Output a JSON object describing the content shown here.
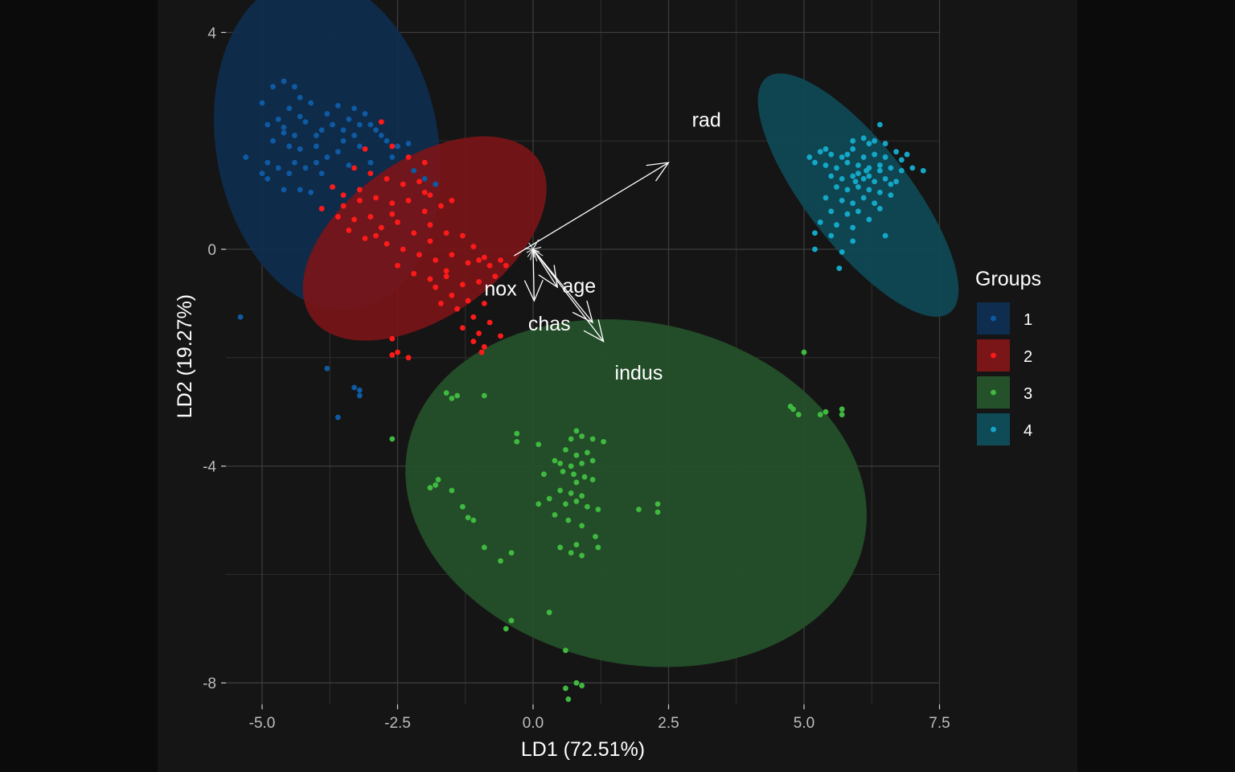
{
  "chart_data": {
    "type": "scatter",
    "xlabel": "LD1 (72.51%)",
    "ylabel": "LD2 (19.27%)",
    "xlim": [
      -5.6,
      7.6
    ],
    "ylim": [
      -8.3,
      4.3
    ],
    "x_ticks": [
      {
        "value": -5.0,
        "label": "-5.0"
      },
      {
        "value": -2.5,
        "label": "-2.5"
      },
      {
        "value": 0.0,
        "label": "0.0"
      },
      {
        "value": 2.5,
        "label": "2.5"
      },
      {
        "value": 5.0,
        "label": "5.0"
      },
      {
        "value": 7.5,
        "label": "7.5"
      }
    ],
    "y_ticks": [
      {
        "value": 4,
        "label": "4"
      },
      {
        "value": 0,
        "label": "0"
      },
      {
        "value": -4,
        "label": "-4"
      },
      {
        "value": -8,
        "label": "-8"
      }
    ],
    "grid": true,
    "legend": {
      "title": "Groups",
      "placement": "right",
      "entries": [
        {
          "name": "1",
          "color": "#0e5aa3"
        },
        {
          "name": "2",
          "color": "#ff1a1a"
        },
        {
          "name": "3",
          "color": "#3fb93f"
        },
        {
          "name": "4",
          "color": "#14a8c8"
        }
      ]
    },
    "ellipses": [
      {
        "group": "1",
        "cx": -3.8,
        "cy": 1.95,
        "rx": 2.05,
        "ry": 3.1,
        "angle_deg": -10,
        "fill": "#0f2e4f"
      },
      {
        "group": "2",
        "cx": -2.0,
        "cy": 0.2,
        "rx": 2.55,
        "ry": 1.45,
        "angle_deg": -35,
        "fill": "#7a1518"
      },
      {
        "group": "3",
        "cx": 1.9,
        "cy": -4.5,
        "rx": 4.3,
        "ry": 3.15,
        "angle_deg": 12,
        "fill": "#25512a"
      },
      {
        "group": "4",
        "cx": 6.0,
        "cy": 1.0,
        "rx": 0.95,
        "ry": 2.75,
        "angle_deg": -38,
        "fill": "#0f4a57"
      }
    ],
    "series": [
      {
        "name": "1",
        "color": "#0e5aa3",
        "points": [
          [
            -4.8,
            3.0
          ],
          [
            -4.6,
            3.1
          ],
          [
            -4.4,
            3.0
          ],
          [
            -4.3,
            2.8
          ],
          [
            -5.0,
            2.7
          ],
          [
            -4.5,
            2.6
          ],
          [
            -4.1,
            2.7
          ],
          [
            -3.8,
            2.5
          ],
          [
            -3.6,
            2.65
          ],
          [
            -4.9,
            2.3
          ],
          [
            -4.7,
            2.4
          ],
          [
            -4.6,
            2.25
          ],
          [
            -4.4,
            2.1
          ],
          [
            -4.2,
            2.35
          ],
          [
            -3.9,
            2.2
          ],
          [
            -3.7,
            2.3
          ],
          [
            -3.4,
            2.4
          ],
          [
            -3.1,
            2.5
          ],
          [
            -3.0,
            2.3
          ],
          [
            -2.9,
            2.2
          ],
          [
            -3.3,
            2.1
          ],
          [
            -3.5,
            2.0
          ],
          [
            -4.8,
            2.0
          ],
          [
            -4.5,
            1.9
          ],
          [
            -4.3,
            1.85
          ],
          [
            -4.0,
            1.9
          ],
          [
            -3.8,
            1.7
          ],
          [
            -3.6,
            1.8
          ],
          [
            -3.2,
            1.9
          ],
          [
            -2.7,
            2.0
          ],
          [
            -2.5,
            1.9
          ],
          [
            -2.3,
            1.95
          ],
          [
            -5.3,
            1.7
          ],
          [
            -4.9,
            1.6
          ],
          [
            -4.7,
            1.5
          ],
          [
            -4.5,
            1.4
          ],
          [
            -4.2,
            1.5
          ],
          [
            -3.9,
            1.4
          ],
          [
            -4.6,
            1.1
          ],
          [
            -4.9,
            1.3
          ],
          [
            -5.0,
            1.4
          ],
          [
            -4.3,
            1.1
          ],
          [
            -4.1,
            1.05
          ],
          [
            -3.4,
            1.55
          ],
          [
            -3.0,
            1.6
          ],
          [
            -2.6,
            1.7
          ],
          [
            -2.2,
            1.45
          ],
          [
            -2.0,
            1.3
          ],
          [
            -1.8,
            1.2
          ],
          [
            -3.7,
            1.15
          ],
          [
            -4.4,
            1.6
          ],
          [
            -4.0,
            1.6
          ],
          [
            -3.5,
            2.2
          ],
          [
            -3.2,
            2.3
          ],
          [
            -2.8,
            2.1
          ],
          [
            -4.6,
            2.15
          ],
          [
            -4.3,
            2.45
          ],
          [
            -4.0,
            2.1
          ],
          [
            -3.3,
            2.6
          ],
          [
            -5.4,
            -1.25
          ],
          [
            -3.8,
            -2.2
          ],
          [
            -3.6,
            -3.1
          ],
          [
            -3.3,
            -2.55
          ],
          [
            -3.2,
            -2.6
          ],
          [
            -3.2,
            -2.7
          ]
        ]
      },
      {
        "name": "2",
        "color": "#ff1a1a",
        "points": [
          [
            -2.8,
            2.35
          ],
          [
            -3.1,
            1.85
          ],
          [
            -2.6,
            1.9
          ],
          [
            -2.3,
            1.7
          ],
          [
            -2.0,
            1.6
          ],
          [
            -3.3,
            1.5
          ],
          [
            -3.0,
            1.4
          ],
          [
            -2.7,
            1.3
          ],
          [
            -2.4,
            1.2
          ],
          [
            -2.1,
            1.25
          ],
          [
            -1.9,
            1.0
          ],
          [
            -3.7,
            1.15
          ],
          [
            -3.5,
            1.0
          ],
          [
            -3.2,
            0.9
          ],
          [
            -2.9,
            0.95
          ],
          [
            -2.6,
            0.85
          ],
          [
            -2.3,
            0.9
          ],
          [
            -2.0,
            0.7
          ],
          [
            -1.7,
            0.8
          ],
          [
            -1.5,
            0.9
          ],
          [
            -3.9,
            0.75
          ],
          [
            -3.6,
            0.6
          ],
          [
            -3.3,
            0.55
          ],
          [
            -3.0,
            0.6
          ],
          [
            -2.8,
            0.4
          ],
          [
            -2.5,
            0.5
          ],
          [
            -2.2,
            0.3
          ],
          [
            -1.9,
            0.45
          ],
          [
            -1.6,
            0.3
          ],
          [
            -1.3,
            0.25
          ],
          [
            -3.4,
            0.35
          ],
          [
            -3.1,
            0.2
          ],
          [
            -2.7,
            0.1
          ],
          [
            -2.4,
            0.0
          ],
          [
            -2.1,
            -0.1
          ],
          [
            -1.8,
            -0.2
          ],
          [
            -1.5,
            -0.1
          ],
          [
            -1.2,
            -0.25
          ],
          [
            -1.0,
            -0.2
          ],
          [
            -0.8,
            -0.3
          ],
          [
            -2.5,
            -0.3
          ],
          [
            -2.2,
            -0.45
          ],
          [
            -1.9,
            -0.55
          ],
          [
            -1.6,
            -0.5
          ],
          [
            -1.3,
            -0.65
          ],
          [
            -1.0,
            -0.6
          ],
          [
            -0.7,
            -0.5
          ],
          [
            -1.8,
            -0.7
          ],
          [
            -1.5,
            -0.85
          ],
          [
            -1.2,
            -0.95
          ],
          [
            -0.9,
            -1.0
          ],
          [
            -1.7,
            -1.0
          ],
          [
            -1.4,
            -1.1
          ],
          [
            -1.1,
            -1.25
          ],
          [
            -0.8,
            -1.35
          ],
          [
            -1.3,
            -1.45
          ],
          [
            -1.0,
            -1.55
          ],
          [
            -0.6,
            -1.6
          ],
          [
            -0.9,
            -1.8
          ],
          [
            -1.1,
            -1.7
          ],
          [
            -2.6,
            -1.65
          ],
          [
            -2.5,
            -1.9
          ],
          [
            -2.6,
            -1.95
          ],
          [
            -2.3,
            -2.0
          ],
          [
            -1.6,
            -0.4
          ],
          [
            -2.0,
            1.05
          ],
          [
            -2.6,
            0.65
          ],
          [
            -2.9,
            0.25
          ],
          [
            -3.2,
            1.1
          ],
          [
            -3.5,
            0.8
          ],
          [
            -1.9,
            0.15
          ],
          [
            -1.1,
            0.05
          ],
          [
            -0.9,
            -0.15
          ],
          [
            -0.6,
            -0.2
          ],
          [
            -0.5,
            -0.3
          ],
          [
            -0.95,
            -1.9
          ]
        ]
      },
      {
        "name": "3",
        "color": "#3fb93f",
        "points": [
          [
            -1.6,
            -2.65
          ],
          [
            -1.5,
            -2.75
          ],
          [
            -1.4,
            -2.7
          ],
          [
            -0.9,
            -2.7
          ],
          [
            -2.6,
            -3.5
          ],
          [
            -0.3,
            -3.4
          ],
          [
            -0.3,
            -3.55
          ],
          [
            0.1,
            -3.6
          ],
          [
            0.8,
            -3.35
          ],
          [
            0.7,
            -3.5
          ],
          [
            0.9,
            -3.45
          ],
          [
            1.1,
            -3.5
          ],
          [
            1.3,
            -3.55
          ],
          [
            0.6,
            -3.7
          ],
          [
            0.8,
            -3.8
          ],
          [
            1.0,
            -3.75
          ],
          [
            0.4,
            -3.9
          ],
          [
            0.5,
            -3.95
          ],
          [
            0.7,
            -4.0
          ],
          [
            0.9,
            -3.95
          ],
          [
            1.1,
            -3.9
          ],
          [
            0.55,
            -4.1
          ],
          [
            0.75,
            -4.15
          ],
          [
            0.95,
            -4.2
          ],
          [
            1.1,
            -4.25
          ],
          [
            0.8,
            -4.3
          ],
          [
            0.5,
            -4.45
          ],
          [
            0.7,
            -4.5
          ],
          [
            0.9,
            -4.55
          ],
          [
            0.3,
            -4.6
          ],
          [
            0.1,
            -4.7
          ],
          [
            0.6,
            -4.7
          ],
          [
            0.8,
            -4.65
          ],
          [
            1.0,
            -4.75
          ],
          [
            1.2,
            -4.8
          ],
          [
            0.4,
            -4.9
          ],
          [
            0.65,
            -5.0
          ],
          [
            0.9,
            -5.1
          ],
          [
            -1.8,
            -4.35
          ],
          [
            -1.75,
            -4.25
          ],
          [
            -1.5,
            -4.45
          ],
          [
            -1.3,
            -4.75
          ],
          [
            -1.1,
            -5.0
          ],
          [
            -1.2,
            -4.95
          ],
          [
            -1.9,
            -4.4
          ],
          [
            -0.9,
            -5.5
          ],
          [
            -0.6,
            -5.75
          ],
          [
            -0.4,
            -5.6
          ],
          [
            0.5,
            -5.5
          ],
          [
            0.8,
            -5.45
          ],
          [
            0.7,
            -5.6
          ],
          [
            0.9,
            -5.65
          ],
          [
            1.2,
            -5.5
          ],
          [
            0.3,
            -6.7
          ],
          [
            -0.4,
            -6.85
          ],
          [
            -0.5,
            -7.0
          ],
          [
            0.6,
            -7.4
          ],
          [
            0.8,
            -8.0
          ],
          [
            0.9,
            -8.05
          ],
          [
            1.95,
            -4.8
          ],
          [
            2.3,
            -4.7
          ],
          [
            2.3,
            -4.85
          ],
          [
            5.0,
            -1.9
          ],
          [
            4.75,
            -2.9
          ],
          [
            4.8,
            -2.95
          ],
          [
            4.9,
            -3.05
          ],
          [
            5.3,
            -3.05
          ],
          [
            5.4,
            -3.0
          ],
          [
            5.7,
            -2.95
          ],
          [
            5.7,
            -3.05
          ],
          [
            0.6,
            -8.1
          ],
          [
            0.65,
            -8.3
          ],
          [
            1.15,
            -5.3
          ],
          [
            0.2,
            -4.15
          ]
        ]
      },
      {
        "name": "4",
        "color": "#14a8c8",
        "points": [
          [
            6.4,
            2.3
          ],
          [
            5.9,
            2.0
          ],
          [
            6.1,
            2.05
          ],
          [
            6.3,
            2.0
          ],
          [
            6.5,
            1.95
          ],
          [
            5.3,
            1.8
          ],
          [
            5.5,
            1.75
          ],
          [
            5.7,
            1.7
          ],
          [
            5.9,
            1.85
          ],
          [
            6.1,
            1.7
          ],
          [
            6.3,
            1.75
          ],
          [
            6.5,
            1.7
          ],
          [
            6.7,
            1.8
          ],
          [
            6.9,
            1.75
          ],
          [
            5.2,
            1.6
          ],
          [
            5.4,
            1.55
          ],
          [
            5.6,
            1.5
          ],
          [
            5.8,
            1.6
          ],
          [
            6.0,
            1.55
          ],
          [
            6.2,
            1.5
          ],
          [
            6.4,
            1.55
          ],
          [
            6.6,
            1.5
          ],
          [
            6.8,
            1.45
          ],
          [
            7.0,
            1.5
          ],
          [
            7.2,
            1.45
          ],
          [
            5.5,
            1.35
          ],
          [
            5.7,
            1.3
          ],
          [
            5.9,
            1.35
          ],
          [
            6.1,
            1.3
          ],
          [
            6.3,
            1.25
          ],
          [
            6.5,
            1.3
          ],
          [
            6.7,
            1.25
          ],
          [
            5.6,
            1.15
          ],
          [
            5.8,
            1.1
          ],
          [
            6.0,
            1.15
          ],
          [
            6.2,
            1.1
          ],
          [
            6.4,
            1.05
          ],
          [
            6.6,
            1.0
          ],
          [
            5.4,
            0.95
          ],
          [
            5.7,
            0.9
          ],
          [
            5.9,
            0.85
          ],
          [
            6.1,
            0.95
          ],
          [
            6.3,
            0.85
          ],
          [
            5.5,
            0.7
          ],
          [
            5.8,
            0.65
          ],
          [
            6.0,
            0.7
          ],
          [
            6.4,
            0.75
          ],
          [
            5.3,
            0.5
          ],
          [
            5.6,
            0.45
          ],
          [
            5.9,
            0.4
          ],
          [
            6.2,
            0.55
          ],
          [
            5.2,
            0.3
          ],
          [
            5.5,
            0.25
          ],
          [
            5.9,
            0.15
          ],
          [
            6.5,
            0.25
          ],
          [
            5.7,
            -0.05
          ],
          [
            5.2,
            0.0
          ],
          [
            5.8,
            1.75
          ],
          [
            6.8,
            1.65
          ],
          [
            6.6,
            1.2
          ],
          [
            6.2,
            1.95
          ],
          [
            5.1,
            1.7
          ],
          [
            5.65,
            -0.35
          ],
          [
            5.4,
            1.85
          ],
          [
            6.0,
            1.4
          ],
          [
            6.2,
            1.35
          ],
          [
            6.4,
            1.45
          ],
          [
            5.95,
            1.25
          ],
          [
            6.15,
            1.45
          ]
        ]
      }
    ],
    "arrows": [
      {
        "label": "rad",
        "x": 2.5,
        "y": 1.6,
        "label_x": 3.2,
        "label_y": 2.26
      },
      {
        "label": "age",
        "x": 0.45,
        "y": -0.7,
        "label_x": 0.85,
        "label_y": -0.8
      },
      {
        "label": "nox",
        "x": 0.02,
        "y": -0.95,
        "label_x": -0.6,
        "label_y": -0.85
      },
      {
        "label": "chas",
        "x": 1.3,
        "y": -1.7,
        "label_x": 0.3,
        "label_y": -1.5
      },
      {
        "label": "indus",
        "x": 1.1,
        "y": -1.35,
        "label_x": 1.95,
        "label_y": -2.4
      }
    ]
  }
}
